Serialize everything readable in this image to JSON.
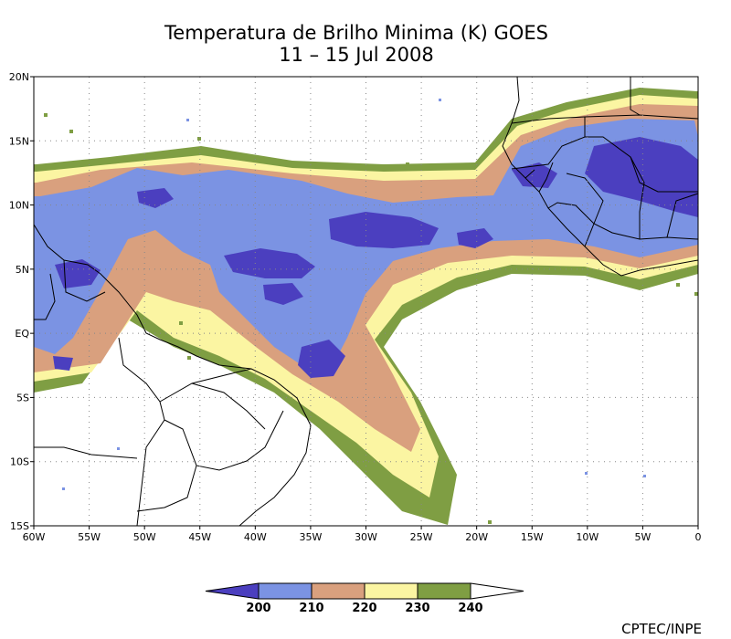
{
  "title": {
    "line1": "Temperatura de Brilho Minima (K) GOES",
    "line2": "11 – 15 Jul 2008"
  },
  "map": {
    "lon_range": [
      -60,
      0
    ],
    "lat_range": [
      -15,
      20
    ],
    "x_ticks": [
      "60W",
      "55W",
      "50W",
      "45W",
      "40W",
      "35W",
      "30W",
      "25W",
      "20W",
      "15W",
      "10W",
      "5W",
      "0"
    ],
    "y_ticks": [
      "20N",
      "15N",
      "10N",
      "5N",
      "EQ",
      "5S",
      "10S",
      "15S"
    ],
    "gridlines": true
  },
  "legend": {
    "labels": [
      "200",
      "210",
      "220",
      "230",
      "240"
    ],
    "colors": [
      "#4b3fbf",
      "#7b93e3",
      "#d9a07e",
      "#fbf5a2",
      "#7f9e43"
    ]
  },
  "credit": "CPTEC/INPE"
}
